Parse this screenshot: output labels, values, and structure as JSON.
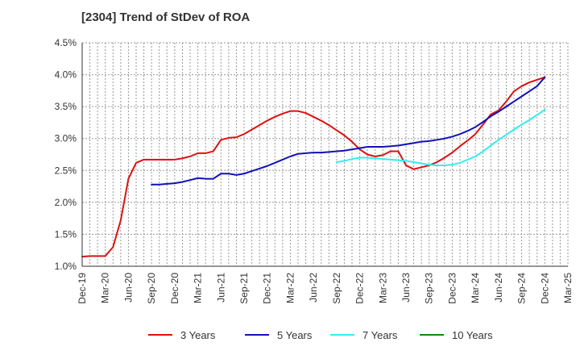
{
  "chart_data": {
    "type": "line",
    "title": "[2304]  Trend of StDev of ROA",
    "xlabel": "",
    "ylabel": "",
    "x_ticks": [
      "Dec-19",
      "Mar-20",
      "Jun-20",
      "Sep-20",
      "Dec-20",
      "Mar-21",
      "Jun-21",
      "Sep-21",
      "Dec-21",
      "Mar-22",
      "Jun-22",
      "Sep-22",
      "Dec-22",
      "Mar-23",
      "Jun-23",
      "Sep-23",
      "Dec-23",
      "Mar-24",
      "Jun-24",
      "Sep-24",
      "Dec-24",
      "Mar-25"
    ],
    "y_ticks": [
      "1.0%",
      "1.5%",
      "2.0%",
      "2.5%",
      "3.0%",
      "3.5%",
      "4.0%",
      "4.5%"
    ],
    "ylim": [
      1.0,
      4.5
    ],
    "y_unit": "%",
    "grid": true,
    "legend_position": "bottom",
    "series": [
      {
        "name": "3 Years",
        "color": "#dd1111",
        "points": [
          [
            "Dec-19",
            1.15
          ],
          [
            "Jan-20",
            1.16
          ],
          [
            "Feb-20",
            1.16
          ],
          [
            "Mar-20",
            1.16
          ],
          [
            "Apr-20",
            1.3
          ],
          [
            "May-20",
            1.72
          ],
          [
            "Jun-20",
            2.37
          ],
          [
            "Jul-20",
            2.62
          ],
          [
            "Aug-20",
            2.67
          ],
          [
            "Sep-20",
            2.67
          ],
          [
            "Oct-20",
            2.67
          ],
          [
            "Nov-20",
            2.67
          ],
          [
            "Dec-20",
            2.67
          ],
          [
            "Jan-21",
            2.69
          ],
          [
            "Feb-21",
            2.72
          ],
          [
            "Mar-21",
            2.77
          ],
          [
            "Apr-21",
            2.77
          ],
          [
            "May-21",
            2.8
          ],
          [
            "Jun-21",
            2.98
          ],
          [
            "Jul-21",
            3.01
          ],
          [
            "Aug-21",
            3.02
          ],
          [
            "Sep-21",
            3.07
          ],
          [
            "Oct-21",
            3.14
          ],
          [
            "Nov-21",
            3.21
          ],
          [
            "Dec-21",
            3.28
          ],
          [
            "Jan-22",
            3.34
          ],
          [
            "Feb-22",
            3.39
          ],
          [
            "Mar-22",
            3.43
          ],
          [
            "Apr-22",
            3.43
          ],
          [
            "May-22",
            3.4
          ],
          [
            "Jun-22",
            3.34
          ],
          [
            "Jul-22",
            3.28
          ],
          [
            "Aug-22",
            3.21
          ],
          [
            "Sep-22",
            3.13
          ],
          [
            "Oct-22",
            3.05
          ],
          [
            "Nov-22",
            2.95
          ],
          [
            "Dec-22",
            2.83
          ],
          [
            "Jan-23",
            2.75
          ],
          [
            "Feb-23",
            2.72
          ],
          [
            "Mar-23",
            2.74
          ],
          [
            "Apr-23",
            2.8
          ],
          [
            "May-23",
            2.8
          ],
          [
            "Jun-23",
            2.58
          ],
          [
            "Jul-23",
            2.52
          ],
          [
            "Aug-23",
            2.55
          ],
          [
            "Sep-23",
            2.58
          ],
          [
            "Oct-23",
            2.63
          ],
          [
            "Nov-23",
            2.7
          ],
          [
            "Dec-23",
            2.78
          ],
          [
            "Jan-24",
            2.88
          ],
          [
            "Feb-24",
            2.97
          ],
          [
            "Mar-24",
            3.07
          ],
          [
            "Apr-24",
            3.22
          ],
          [
            "May-24",
            3.38
          ],
          [
            "Jun-24",
            3.44
          ],
          [
            "Jul-24",
            3.58
          ],
          [
            "Aug-24",
            3.74
          ],
          [
            "Sep-24",
            3.82
          ],
          [
            "Oct-24",
            3.88
          ],
          [
            "Nov-24",
            3.92
          ],
          [
            "Dec-24",
            3.96
          ]
        ]
      },
      {
        "name": "5 Years",
        "color": "#1111bb",
        "points": [
          [
            "Sep-20",
            2.28
          ],
          [
            "Oct-20",
            2.28
          ],
          [
            "Nov-20",
            2.29
          ],
          [
            "Dec-20",
            2.3
          ],
          [
            "Jan-21",
            2.32
          ],
          [
            "Feb-21",
            2.35
          ],
          [
            "Mar-21",
            2.38
          ],
          [
            "Apr-21",
            2.37
          ],
          [
            "May-21",
            2.37
          ],
          [
            "Jun-21",
            2.45
          ],
          [
            "Jul-21",
            2.45
          ],
          [
            "Aug-21",
            2.43
          ],
          [
            "Sep-21",
            2.45
          ],
          [
            "Oct-21",
            2.49
          ],
          [
            "Nov-21",
            2.53
          ],
          [
            "Dec-21",
            2.57
          ],
          [
            "Jan-22",
            2.62
          ],
          [
            "Feb-22",
            2.67
          ],
          [
            "Mar-22",
            2.72
          ],
          [
            "Apr-22",
            2.76
          ],
          [
            "May-22",
            2.77
          ],
          [
            "Jun-22",
            2.78
          ],
          [
            "Jul-22",
            2.78
          ],
          [
            "Aug-22",
            2.79
          ],
          [
            "Sep-22",
            2.8
          ],
          [
            "Oct-22",
            2.81
          ],
          [
            "Nov-22",
            2.83
          ],
          [
            "Dec-22",
            2.85
          ],
          [
            "Jan-23",
            2.87
          ],
          [
            "Feb-23",
            2.87
          ],
          [
            "Mar-23",
            2.87
          ],
          [
            "Apr-23",
            2.88
          ],
          [
            "May-23",
            2.89
          ],
          [
            "Jun-23",
            2.91
          ],
          [
            "Jul-23",
            2.93
          ],
          [
            "Aug-23",
            2.95
          ],
          [
            "Sep-23",
            2.96
          ],
          [
            "Oct-23",
            2.98
          ],
          [
            "Nov-23",
            3.0
          ],
          [
            "Dec-23",
            3.03
          ],
          [
            "Jan-24",
            3.07
          ],
          [
            "Feb-24",
            3.12
          ],
          [
            "Mar-24",
            3.18
          ],
          [
            "Apr-24",
            3.26
          ],
          [
            "May-24",
            3.35
          ],
          [
            "Jun-24",
            3.42
          ],
          [
            "Jul-24",
            3.5
          ],
          [
            "Aug-24",
            3.58
          ],
          [
            "Sep-24",
            3.66
          ],
          [
            "Oct-24",
            3.74
          ],
          [
            "Nov-24",
            3.82
          ],
          [
            "Dec-24",
            3.96
          ]
        ]
      },
      {
        "name": "7 Years",
        "color": "#33eeee",
        "points": [
          [
            "Sep-22",
            2.63
          ],
          [
            "Oct-22",
            2.65
          ],
          [
            "Nov-22",
            2.68
          ],
          [
            "Dec-22",
            2.7
          ],
          [
            "Jan-23",
            2.7
          ],
          [
            "Feb-23",
            2.69
          ],
          [
            "Mar-23",
            2.68
          ],
          [
            "Apr-23",
            2.67
          ],
          [
            "May-23",
            2.66
          ],
          [
            "Jun-23",
            2.65
          ],
          [
            "Jul-23",
            2.63
          ],
          [
            "Aug-23",
            2.61
          ],
          [
            "Sep-23",
            2.59
          ],
          [
            "Oct-23",
            2.58
          ],
          [
            "Nov-23",
            2.58
          ],
          [
            "Dec-23",
            2.59
          ],
          [
            "Jan-24",
            2.62
          ],
          [
            "Feb-24",
            2.67
          ],
          [
            "Mar-24",
            2.72
          ],
          [
            "Apr-24",
            2.8
          ],
          [
            "May-24",
            2.89
          ],
          [
            "Jun-24",
            2.98
          ],
          [
            "Jul-24",
            3.06
          ],
          [
            "Aug-24",
            3.14
          ],
          [
            "Sep-24",
            3.22
          ],
          [
            "Oct-24",
            3.29
          ],
          [
            "Nov-24",
            3.37
          ],
          [
            "Dec-24",
            3.45
          ]
        ]
      },
      {
        "name": "10 Years",
        "color": "#118811",
        "points": []
      }
    ]
  }
}
